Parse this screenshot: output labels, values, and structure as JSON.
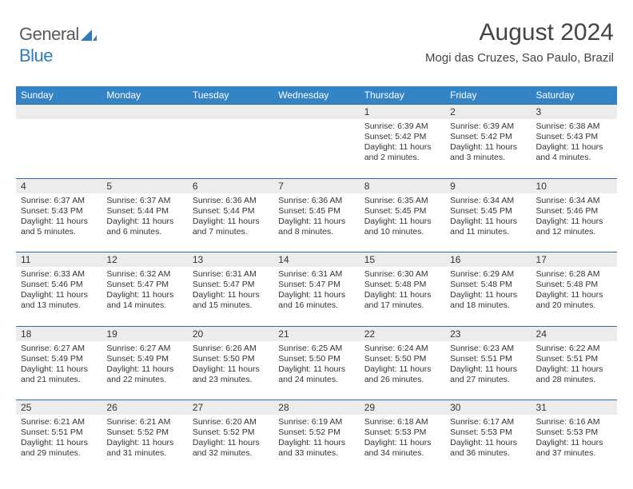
{
  "brand": {
    "part1": "General",
    "part2": "Blue"
  },
  "title": "August 2024",
  "location": "Mogi das Cruzes, Sao Paulo, Brazil",
  "colors": {
    "header_bg": "#3483c4",
    "header_text": "#ffffff",
    "daynum_bg": "#ececec",
    "body_text": "#333333",
    "rule": "#2f6aa0",
    "brand_gray": "#5a5a5a",
    "brand_blue": "#2f7bbf"
  },
  "weekdays": [
    "Sunday",
    "Monday",
    "Tuesday",
    "Wednesday",
    "Thursday",
    "Friday",
    "Saturday"
  ],
  "weeks": [
    [
      null,
      null,
      null,
      null,
      {
        "n": "1",
        "sr": "6:39 AM",
        "ss": "5:42 PM",
        "dl": "11 hours and 2 minutes."
      },
      {
        "n": "2",
        "sr": "6:39 AM",
        "ss": "5:42 PM",
        "dl": "11 hours and 3 minutes."
      },
      {
        "n": "3",
        "sr": "6:38 AM",
        "ss": "5:43 PM",
        "dl": "11 hours and 4 minutes."
      }
    ],
    [
      {
        "n": "4",
        "sr": "6:37 AM",
        "ss": "5:43 PM",
        "dl": "11 hours and 5 minutes."
      },
      {
        "n": "5",
        "sr": "6:37 AM",
        "ss": "5:44 PM",
        "dl": "11 hours and 6 minutes."
      },
      {
        "n": "6",
        "sr": "6:36 AM",
        "ss": "5:44 PM",
        "dl": "11 hours and 7 minutes."
      },
      {
        "n": "7",
        "sr": "6:36 AM",
        "ss": "5:45 PM",
        "dl": "11 hours and 8 minutes."
      },
      {
        "n": "8",
        "sr": "6:35 AM",
        "ss": "5:45 PM",
        "dl": "11 hours and 10 minutes."
      },
      {
        "n": "9",
        "sr": "6:34 AM",
        "ss": "5:45 PM",
        "dl": "11 hours and 11 minutes."
      },
      {
        "n": "10",
        "sr": "6:34 AM",
        "ss": "5:46 PM",
        "dl": "11 hours and 12 minutes."
      }
    ],
    [
      {
        "n": "11",
        "sr": "6:33 AM",
        "ss": "5:46 PM",
        "dl": "11 hours and 13 minutes."
      },
      {
        "n": "12",
        "sr": "6:32 AM",
        "ss": "5:47 PM",
        "dl": "11 hours and 14 minutes."
      },
      {
        "n": "13",
        "sr": "6:31 AM",
        "ss": "5:47 PM",
        "dl": "11 hours and 15 minutes."
      },
      {
        "n": "14",
        "sr": "6:31 AM",
        "ss": "5:47 PM",
        "dl": "11 hours and 16 minutes."
      },
      {
        "n": "15",
        "sr": "6:30 AM",
        "ss": "5:48 PM",
        "dl": "11 hours and 17 minutes."
      },
      {
        "n": "16",
        "sr": "6:29 AM",
        "ss": "5:48 PM",
        "dl": "11 hours and 18 minutes."
      },
      {
        "n": "17",
        "sr": "6:28 AM",
        "ss": "5:48 PM",
        "dl": "11 hours and 20 minutes."
      }
    ],
    [
      {
        "n": "18",
        "sr": "6:27 AM",
        "ss": "5:49 PM",
        "dl": "11 hours and 21 minutes."
      },
      {
        "n": "19",
        "sr": "6:27 AM",
        "ss": "5:49 PM",
        "dl": "11 hours and 22 minutes."
      },
      {
        "n": "20",
        "sr": "6:26 AM",
        "ss": "5:50 PM",
        "dl": "11 hours and 23 minutes."
      },
      {
        "n": "21",
        "sr": "6:25 AM",
        "ss": "5:50 PM",
        "dl": "11 hours and 24 minutes."
      },
      {
        "n": "22",
        "sr": "6:24 AM",
        "ss": "5:50 PM",
        "dl": "11 hours and 26 minutes."
      },
      {
        "n": "23",
        "sr": "6:23 AM",
        "ss": "5:51 PM",
        "dl": "11 hours and 27 minutes."
      },
      {
        "n": "24",
        "sr": "6:22 AM",
        "ss": "5:51 PM",
        "dl": "11 hours and 28 minutes."
      }
    ],
    [
      {
        "n": "25",
        "sr": "6:21 AM",
        "ss": "5:51 PM",
        "dl": "11 hours and 29 minutes."
      },
      {
        "n": "26",
        "sr": "6:21 AM",
        "ss": "5:52 PM",
        "dl": "11 hours and 31 minutes."
      },
      {
        "n": "27",
        "sr": "6:20 AM",
        "ss": "5:52 PM",
        "dl": "11 hours and 32 minutes."
      },
      {
        "n": "28",
        "sr": "6:19 AM",
        "ss": "5:52 PM",
        "dl": "11 hours and 33 minutes."
      },
      {
        "n": "29",
        "sr": "6:18 AM",
        "ss": "5:53 PM",
        "dl": "11 hours and 34 minutes."
      },
      {
        "n": "30",
        "sr": "6:17 AM",
        "ss": "5:53 PM",
        "dl": "11 hours and 36 minutes."
      },
      {
        "n": "31",
        "sr": "6:16 AM",
        "ss": "5:53 PM",
        "dl": "11 hours and 37 minutes."
      }
    ]
  ],
  "labels": {
    "sunrise": "Sunrise: ",
    "sunset": "Sunset: ",
    "daylight": "Daylight: "
  }
}
